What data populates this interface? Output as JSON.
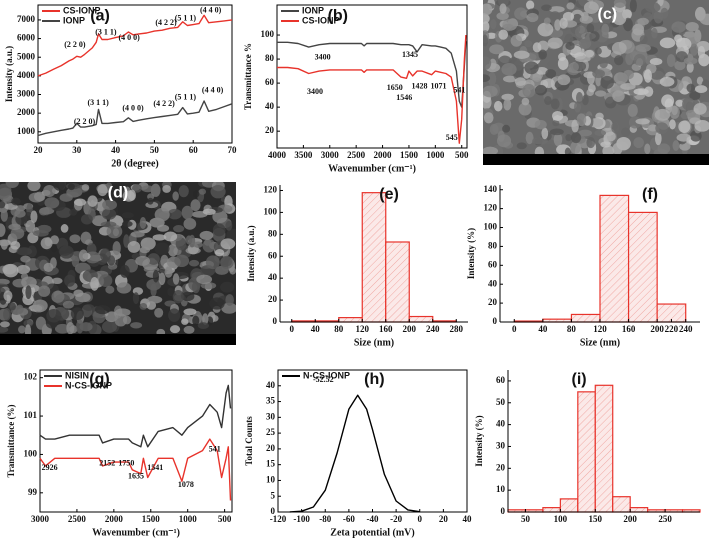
{
  "chart_data": [
    {
      "type": "line",
      "label": "(a)",
      "xlabel": "2θ (degree)",
      "ylabel": "Intensity (a.u.)",
      "x": [
        20,
        22,
        24,
        26,
        28,
        29,
        30,
        31,
        32,
        34,
        35,
        35.6,
        36.5,
        38,
        40,
        42,
        43.3,
        44.5,
        46,
        48,
        50,
        52,
        54,
        56,
        57.3,
        58.5,
        60,
        61.5,
        62.8,
        64,
        66,
        68,
        70
      ],
      "series": [
        {
          "name": "CS-IONP",
          "color": "#e8332b",
          "values": [
            4000,
            4150,
            4350,
            4550,
            4800,
            4900,
            5050,
            5000,
            5150,
            5500,
            5800,
            6250,
            5950,
            5950,
            6050,
            6150,
            6350,
            6200,
            6250,
            6300,
            6400,
            6450,
            6550,
            6600,
            6900,
            6700,
            6750,
            6800,
            7250,
            6850,
            6900,
            6950,
            7000
          ]
        },
        {
          "name": "IONP",
          "color": "#444444",
          "values": [
            800,
            920,
            1000,
            1080,
            1150,
            1200,
            1450,
            1250,
            1250,
            1330,
            1400,
            2200,
            1450,
            1450,
            1500,
            1540,
            1750,
            1560,
            1620,
            1700,
            1760,
            1820,
            1880,
            1940,
            2300,
            1960,
            2000,
            2050,
            2650,
            2100,
            2200,
            2350,
            2500
          ]
        }
      ],
      "xlim": [
        20,
        70
      ],
      "xticks": [
        20,
        30,
        40,
        50,
        60,
        70
      ],
      "ylim": [
        400,
        7800
      ],
      "yticks": [
        1000,
        2000,
        3000,
        4000,
        5000,
        6000,
        7000
      ],
      "legend": "upper left",
      "annotations": [
        "(2 2 0)",
        "(3 1 1)",
        "(4 0 0)",
        "(4 2 2)",
        "(5 1 1)",
        "(4 4 0)",
        "(2 2 0)",
        "(3 1 1)",
        "(4 0 0)",
        "(4 2 2)",
        "(5 1 1)",
        "(4 4 0)"
      ]
    },
    {
      "type": "line",
      "label": "(b)",
      "xlabel": "Wavenumber (cm⁻¹)",
      "ylabel": "Transmittance %",
      "x": [
        4000,
        3800,
        3600,
        3400,
        3200,
        3000,
        2800,
        2600,
        2400,
        2350,
        2300,
        2000,
        1800,
        1650,
        1546,
        1500,
        1428,
        1345,
        1250,
        1071,
        1000,
        900,
        800,
        700,
        600,
        545,
        500,
        450,
        420
      ],
      "series": [
        {
          "name": "IONP",
          "color": "#444444",
          "values": [
            94,
            94,
            93,
            90,
            92,
            93,
            93,
            93,
            93,
            91,
            93,
            93,
            93,
            92,
            92,
            92,
            91,
            86,
            92,
            91,
            91,
            90,
            89,
            85,
            70,
            45,
            40,
            75,
            95
          ]
        },
        {
          "name": "CS-IONP",
          "color": "#e8332b",
          "values": [
            73,
            73,
            72,
            68,
            70,
            71,
            71,
            71,
            71,
            69,
            71,
            71,
            71,
            65,
            64,
            70,
            66,
            70,
            70,
            67,
            70,
            69,
            68,
            65,
            45,
            10,
            30,
            80,
            100
          ]
        }
      ],
      "xlim": [
        4000,
        400
      ],
      "xticks": [
        4000,
        3500,
        3000,
        2500,
        2000,
        1500,
        1000,
        500
      ],
      "ylim": [
        6,
        125
      ],
      "yticks": [
        20,
        40,
        60,
        80,
        100
      ],
      "legend": "upper left",
      "annotations": [
        "3400",
        "1345",
        "541",
        "3400",
        "1650",
        "1546",
        "1428",
        "1071",
        "545"
      ]
    },
    {
      "type": "image",
      "label": "(c)"
    },
    {
      "type": "image",
      "label": "(d)"
    },
    {
      "type": "histogram",
      "label": "(e)",
      "xlabel": "Size (nm)",
      "ylabel": "Intensity (a.u.)",
      "bins": [
        0,
        40,
        80,
        120,
        160,
        200,
        240,
        280
      ],
      "counts": [
        1,
        1,
        4,
        118,
        73,
        5,
        1
      ],
      "color": "#e8332b",
      "xlim": [
        -20,
        300
      ],
      "xticks": [
        0,
        40,
        80,
        120,
        160,
        200,
        240,
        280
      ],
      "ylim": [
        0,
        125
      ],
      "yticks": [
        0,
        20,
        40,
        60,
        80,
        100,
        120
      ]
    },
    {
      "type": "histogram",
      "label": "(f)",
      "xlabel": "Size (nm)",
      "ylabel": "Intensity (%)",
      "bins": [
        0,
        40,
        80,
        120,
        160,
        200,
        240
      ],
      "counts": [
        1,
        3,
        8,
        134,
        116,
        19
      ],
      "color": "#e8332b",
      "xlim": [
        -20,
        260
      ],
      "xticks": [
        0,
        40,
        80,
        120,
        160,
        200,
        220,
        240
      ],
      "ylim": [
        0,
        145
      ],
      "yticks": [
        0,
        20,
        40,
        60,
        80,
        100,
        120,
        140
      ]
    },
    {
      "type": "line",
      "label": "(g)",
      "xlabel": "Wavenumber (cm⁻¹)",
      "ylabel": "Transmittance (%)",
      "x": [
        3000,
        2926,
        2800,
        2600,
        2400,
        2200,
        2152,
        2000,
        1800,
        1750,
        1635,
        1600,
        1541,
        1400,
        1200,
        1078,
        1000,
        800,
        700,
        600,
        541,
        480,
        450,
        420
      ],
      "series": [
        {
          "name": "NISIN",
          "color": "#333333",
          "values": [
            100.5,
            100.4,
            100.4,
            100.5,
            100.5,
            100.5,
            100.3,
            100.4,
            100.4,
            100.3,
            100.2,
            100.5,
            100.2,
            100.6,
            100.7,
            100.5,
            100.7,
            101.0,
            101.3,
            101.1,
            100.7,
            101.6,
            101.8,
            101.2
          ]
        },
        {
          "name": "N-CS-IONP",
          "color": "#e8332b",
          "values": [
            99.9,
            99.7,
            99.9,
            99.9,
            99.9,
            99.9,
            99.7,
            99.8,
            99.8,
            99.6,
            99.5,
            99.9,
            99.4,
            99.9,
            99.9,
            99.3,
            99.9,
            100.1,
            100.4,
            100.1,
            99.4,
            99.9,
            100.2,
            98.8
          ]
        }
      ],
      "xlim": [
        3000,
        400
      ],
      "xticks": [
        3000,
        2500,
        2000,
        1500,
        1000,
        500
      ],
      "ylim": [
        98.5,
        102.2
      ],
      "yticks": [
        99,
        100,
        101,
        102
      ],
      "legend": "upper left",
      "annotations": [
        "2926",
        "2152",
        "1750",
        "1635",
        "1541",
        "1078",
        "541"
      ]
    },
    {
      "type": "line",
      "label": "(h)",
      "xlabel": "Zeta potential (mV)",
      "ylabel": "Total Counts",
      "x": [
        -110,
        -100,
        -90,
        -80,
        -70,
        -60,
        -52.52,
        -45,
        -40,
        -30,
        -20,
        -10,
        0
      ],
      "series": [
        {
          "name": "N-CS-IONP",
          "color": "#000000",
          "values": [
            0.02,
            0.25,
            1.6,
            6.9,
            18.7,
            32.6,
            37,
            32.6,
            26.1,
            12.0,
            3.5,
            0.67,
            0.08
          ]
        }
      ],
      "xlim": [
        -120,
        40
      ],
      "xticks": [
        -120,
        -100,
        -80,
        -60,
        -40,
        -20,
        0,
        20,
        40
      ],
      "ylim": [
        0,
        45
      ],
      "yticks": [
        0,
        5,
        10,
        15,
        20,
        25,
        30,
        35,
        40
      ],
      "legend": "upper left",
      "annotations": [
        "-52.52"
      ]
    },
    {
      "type": "histogram",
      "label": "(i)",
      "ylabel": "Intensity (%)",
      "bins": [
        25,
        50,
        75,
        100,
        125,
        150,
        175,
        200,
        225,
        250,
        275,
        300
      ],
      "counts": [
        1,
        1,
        2,
        6,
        55,
        58,
        7,
        2,
        1,
        1,
        1
      ],
      "color": "#e8332b",
      "xlim": [
        25,
        300
      ],
      "xticks": [
        50,
        100,
        150,
        200,
        250
      ],
      "ylim": [
        0,
        65
      ],
      "yticks": [
        0,
        10,
        20,
        30,
        40,
        50,
        60
      ]
    }
  ]
}
